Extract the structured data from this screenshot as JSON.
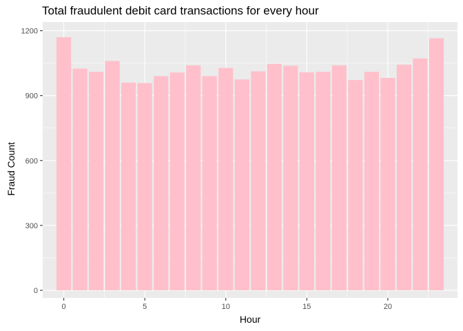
{
  "chart_data": {
    "type": "bar",
    "title": "Total fraudulent debit card transactions for every hour",
    "xlabel": "Hour",
    "ylabel": "Fraud Count",
    "x": [
      0,
      1,
      2,
      3,
      4,
      5,
      6,
      7,
      8,
      9,
      10,
      11,
      12,
      13,
      14,
      15,
      16,
      17,
      18,
      19,
      20,
      21,
      22,
      23
    ],
    "values": [
      1170,
      1025,
      1010,
      1060,
      960,
      958,
      990,
      1007,
      1040,
      990,
      1028,
      975,
      1012,
      1047,
      1038,
      1008,
      1010,
      1040,
      972,
      1010,
      982,
      1043,
      1072,
      1165
    ],
    "xlim": [
      -1.3,
      24.3
    ],
    "ylim": [
      -35,
      1240
    ],
    "xticks": [
      0,
      5,
      10,
      15,
      20
    ],
    "yticks": [
      0,
      300,
      600,
      900,
      1200
    ],
    "bar_color": "#FFC0CB",
    "panel_background": "#EBEBEB",
    "grid": true,
    "legend": "none"
  }
}
